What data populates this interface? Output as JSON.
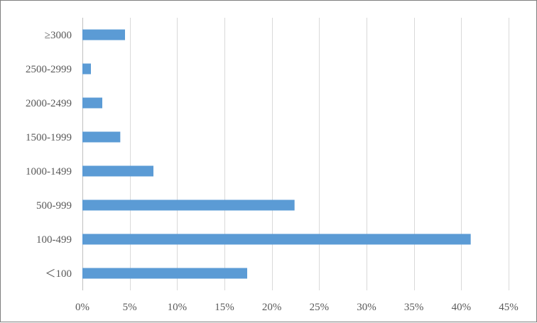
{
  "chart_data": {
    "type": "bar",
    "orientation": "horizontal",
    "title": "",
    "xlabel": "",
    "ylabel": "",
    "categories": [
      "≥3000",
      "2500-2999",
      "2000-2499",
      "1500-1999",
      "1000-1499",
      "500-999",
      "100-499",
      "＜100"
    ],
    "values": [
      4.5,
      0.9,
      2.1,
      4.0,
      7.5,
      22.4,
      41.0,
      17.4
    ],
    "value_unit": "%",
    "xlim": [
      0,
      45
    ],
    "x_ticks": [
      0,
      5,
      10,
      15,
      20,
      25,
      30,
      35,
      40,
      45
    ],
    "x_tick_labels": [
      "0%",
      "5%",
      "10%",
      "15%",
      "20%",
      "25%",
      "30%",
      "35%",
      "40%",
      "45%"
    ],
    "grid": "vertical",
    "legend": "none",
    "bar_color": "#5b9bd5",
    "grid_color": "#d9d9d9"
  }
}
